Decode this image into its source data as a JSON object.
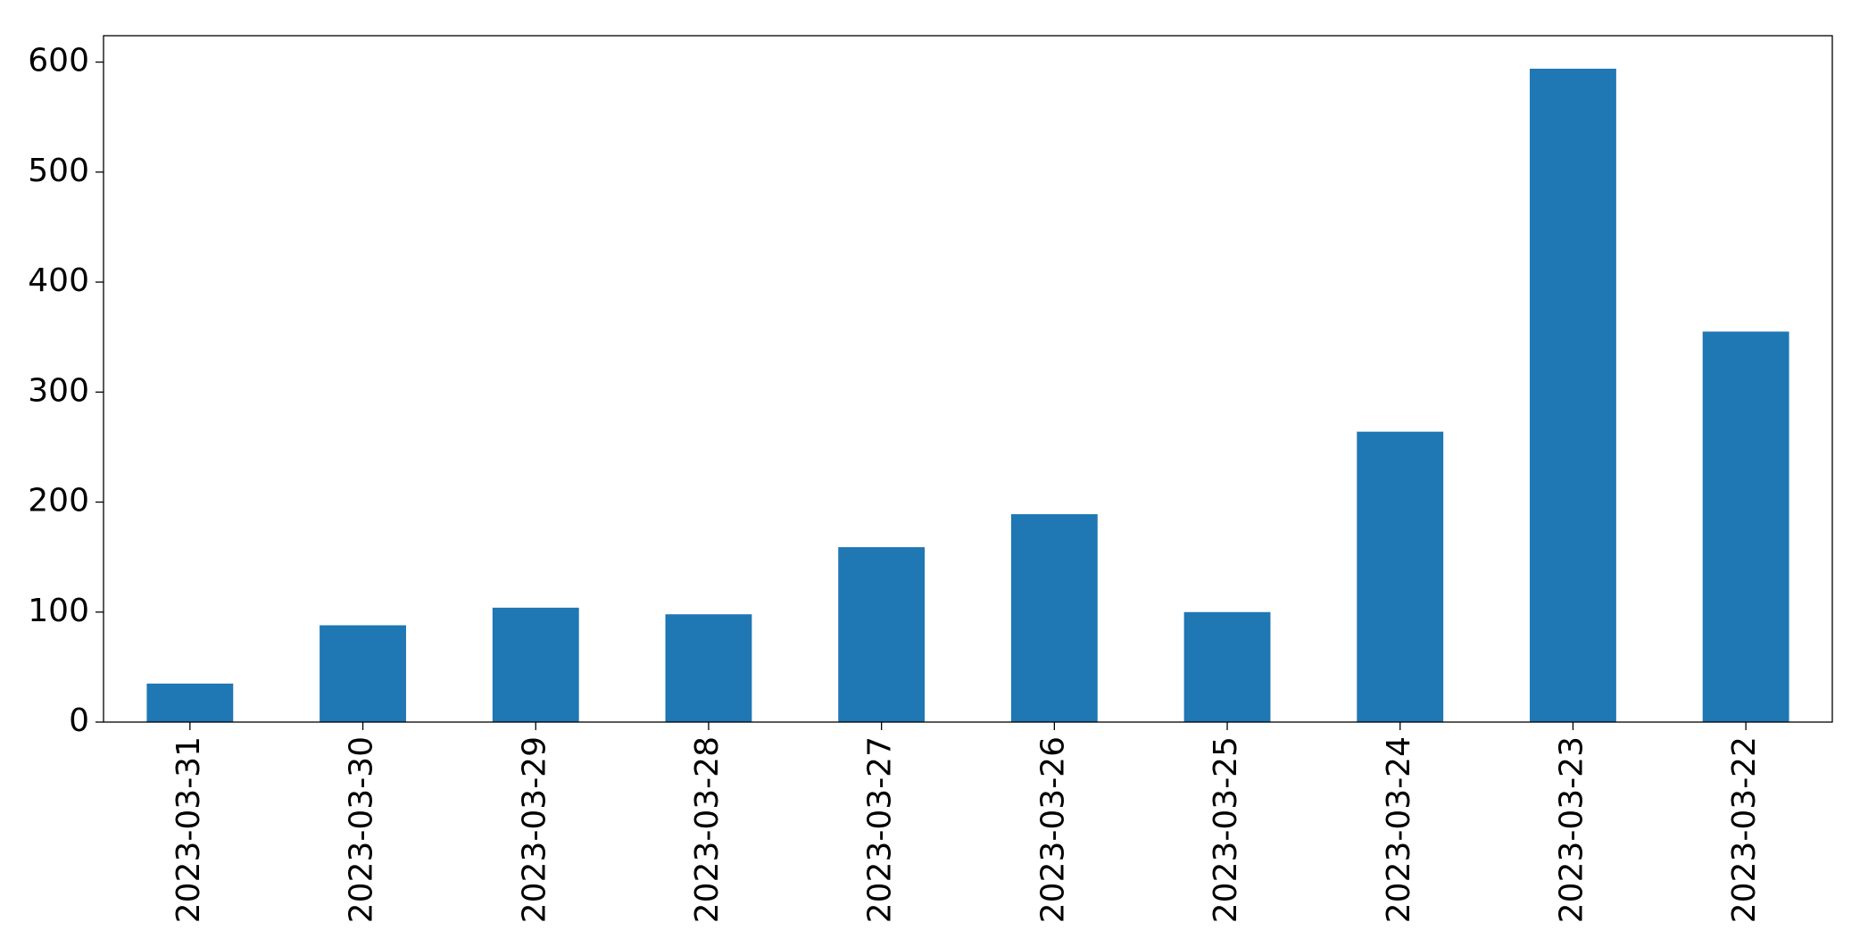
{
  "chart_data": {
    "type": "bar",
    "categories": [
      "2023-03-31",
      "2023-03-30",
      "2023-03-29",
      "2023-03-28",
      "2023-03-27",
      "2023-03-26",
      "2023-03-25",
      "2023-03-24",
      "2023-03-23",
      "2023-03-22"
    ],
    "values": [
      35,
      88,
      104,
      98,
      159,
      189,
      100,
      264,
      594,
      355
    ],
    "color": "#1f77b4",
    "ylim": [
      0,
      624
    ],
    "yticks": [
      0,
      100,
      200,
      300,
      400,
      500,
      600
    ],
    "grid": false
  }
}
